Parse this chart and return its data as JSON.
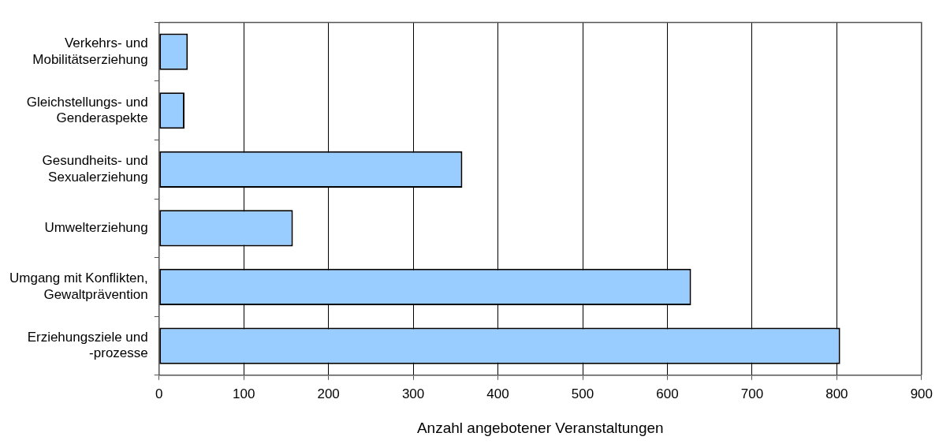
{
  "chart_data": {
    "type": "bar",
    "orientation": "horizontal",
    "xlabel": "Anzahl angebotener Veranstaltungen",
    "categories": [
      "Verkehrs- und\nMobilitätserziehung",
      "Gleichstellungs- und\nGenderaspekte",
      "Gesundheits- und\nSexualerziehung",
      "Umwelterziehung",
      "Umgang mit Konflikten,\nGewaltprävention",
      "Erziehungsziele und\n-prozesse"
    ],
    "values": [
      34,
      30,
      358,
      158,
      628,
      804
    ],
    "color": "#99ccff",
    "xlim": [
      0,
      900
    ],
    "xticks": [
      0,
      100,
      200,
      300,
      400,
      500,
      600,
      700,
      800,
      900
    ],
    "grid": "x",
    "legend": false
  }
}
